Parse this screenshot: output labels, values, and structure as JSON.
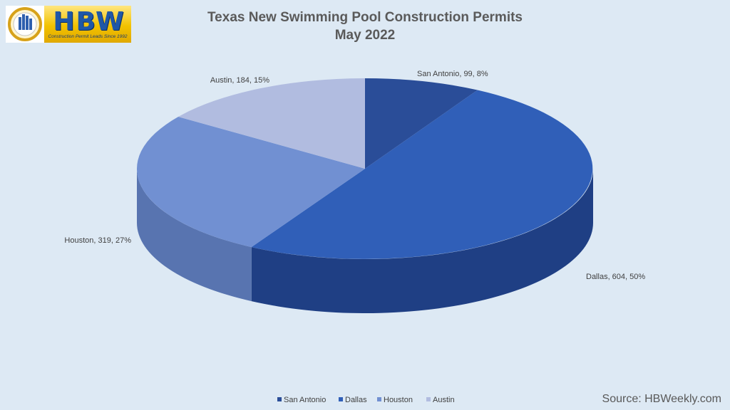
{
  "logo": {
    "letters": "HBW",
    "tagline": "Construction Permit Leads Since 1992"
  },
  "title_line1": "Texas New Swimming Pool Construction Permits",
  "title_line2": "May 2022",
  "source": "Source: HBWeekly.com",
  "chart_data": {
    "type": "pie",
    "title": "Texas New Swimming Pool Construction Permits May 2022",
    "slices": [
      {
        "label": "San Antonio",
        "value": 99,
        "percent": 8,
        "color": "#2a4d98",
        "side_color": "#1a3370",
        "label_text": "San Antonio, 99, 8%"
      },
      {
        "label": "Dallas",
        "value": 604,
        "percent": 50,
        "color": "#305fb8",
        "side_color": "#1f3f84",
        "label_text": "Dallas, 604, 50%"
      },
      {
        "label": "Houston",
        "value": 319,
        "percent": 27,
        "color": "#7190d2",
        "side_color": "#5874b0",
        "label_text": "Houston, 319, 27%"
      },
      {
        "label": "Austin",
        "value": 184,
        "percent": 15,
        "color": "#b1bce0",
        "side_color": "#8e9ac4",
        "label_text": "Austin, 184, 15%"
      }
    ],
    "legend_position": "bottom",
    "rendering": "3d"
  }
}
